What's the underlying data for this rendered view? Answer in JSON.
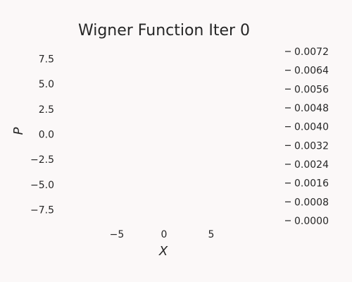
{
  "chart_data": {
    "type": "heatmap",
    "title": "Wigner Function Iter 0",
    "xlabel": "X",
    "ylabel": "P",
    "x_ticks": [
      -5,
      0,
      5
    ],
    "x_tick_labels": [
      "−5",
      "0",
      "5"
    ],
    "y_ticks": [
      7.5,
      5.0,
      2.5,
      0.0,
      -2.5,
      -5.0,
      -7.5
    ],
    "y_tick_labels": [
      "7.5",
      "5.0",
      "2.5",
      "0.0",
      "−2.5",
      "−5.0",
      "−7.5"
    ],
    "xlim": [
      -10,
      10
    ],
    "ylim": [
      -9,
      9
    ],
    "colorbar": {
      "ticks": [
        0.0072,
        0.0064,
        0.0056,
        0.0048,
        0.004,
        0.0032,
        0.0024,
        0.0016,
        0.0008,
        0.0
      ],
      "tick_labels": [
        "0.0072",
        "0.0064",
        "0.0056",
        "0.0048",
        "0.0040",
        "0.0032",
        "0.0024",
        "0.0016",
        "0.0008",
        "0.0000"
      ],
      "range": [
        0.0,
        0.0072
      ]
    },
    "grid": false,
    "background": "#fbf8f8",
    "text_color": "#262626"
  }
}
